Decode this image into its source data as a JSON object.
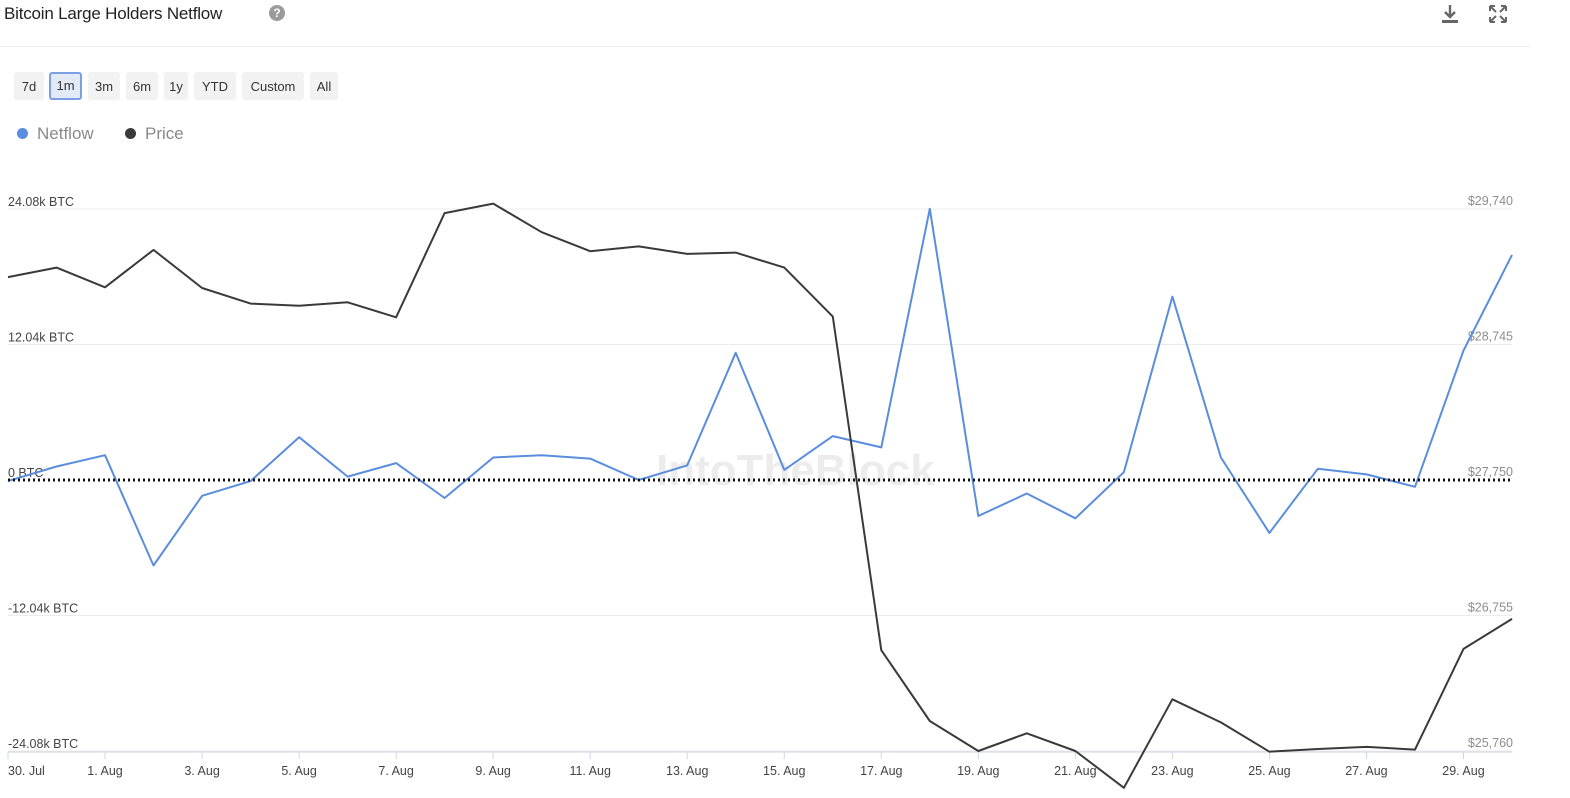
{
  "header": {
    "title": "Bitcoin Large Holders Netflow",
    "help_icon": "question-circle-icon",
    "download_icon": "download-icon",
    "fullscreen_icon": "expand-icon"
  },
  "range_buttons": [
    "7d",
    "1m",
    "3m",
    "6m",
    "1y",
    "YTD",
    "Custom",
    "All"
  ],
  "active_range": "1m",
  "legend": [
    {
      "name": "Netflow",
      "color": "#5b8dde"
    },
    {
      "name": "Price",
      "color": "#3a3a3a"
    }
  ],
  "watermark": "IntoTheBlock",
  "chart_data": {
    "type": "line",
    "x": [
      "30 Jul",
      "31 Jul",
      "1 Aug",
      "2 Aug",
      "3 Aug",
      "4 Aug",
      "5 Aug",
      "6 Aug",
      "7 Aug",
      "8 Aug",
      "9 Aug",
      "10 Aug",
      "11 Aug",
      "12 Aug",
      "13 Aug",
      "14 Aug",
      "15 Aug",
      "16 Aug",
      "17 Aug",
      "18 Aug",
      "19 Aug",
      "20 Aug",
      "21 Aug",
      "22 Aug",
      "23 Aug",
      "24 Aug",
      "25 Aug",
      "26 Aug",
      "27 Aug",
      "28 Aug",
      "29 Aug",
      "30 Aug"
    ],
    "x_tick_labels": [
      "30. Jul",
      "1. Aug",
      "3. Aug",
      "5. Aug",
      "7. Aug",
      "9. Aug",
      "11. Aug",
      "13. Aug",
      "15. Aug",
      "17. Aug",
      "19. Aug",
      "21. Aug",
      "23. Aug",
      "25. Aug",
      "27. Aug",
      "29. Aug"
    ],
    "x_tick_index": [
      0,
      2,
      4,
      6,
      8,
      10,
      12,
      14,
      16,
      18,
      20,
      22,
      24,
      26,
      28,
      30
    ],
    "series": [
      {
        "name": "Netflow",
        "axis": "left",
        "color": "#5b8dde",
        "values": [
          -100,
          1200,
          2200,
          -7600,
          -1400,
          -100,
          3800,
          300,
          1500,
          -1600,
          2000,
          2200,
          1900,
          0,
          1300,
          11300,
          900,
          3900,
          2900,
          24100,
          -3200,
          -1200,
          -3400,
          700,
          16300,
          2000,
          -4700,
          1000,
          500,
          -600,
          11500,
          20000
        ]
      },
      {
        "name": "Price",
        "axis": "right",
        "color": "#3a3a3a",
        "values": [
          29240,
          29310,
          29165,
          29440,
          29160,
          29045,
          29030,
          29055,
          28945,
          29710,
          29780,
          29570,
          29430,
          29465,
          29410,
          29420,
          29310,
          28950,
          26500,
          25980,
          25760,
          25890,
          25760,
          25490,
          26140,
          25970,
          25755,
          25775,
          25790,
          25770,
          26510,
          26730
        ]
      }
    ],
    "left_axis": {
      "ticks": [
        "24.08k BTC",
        "12.04k BTC",
        "0 BTC",
        "-12.04k BTC",
        "-24.08k BTC"
      ],
      "tick_values": [
        24080,
        12040,
        0,
        -12040,
        -24080
      ],
      "ylim": [
        -24080,
        24080
      ]
    },
    "right_axis": {
      "ticks": [
        "$29,740",
        "$28,745",
        "$27,750",
        "$26,755",
        "$25,760"
      ],
      "tick_values": [
        29740,
        28745,
        27750,
        26755,
        25760
      ],
      "ylim": [
        25760,
        29740
      ]
    },
    "zero_line": "dotted",
    "grid": true
  }
}
